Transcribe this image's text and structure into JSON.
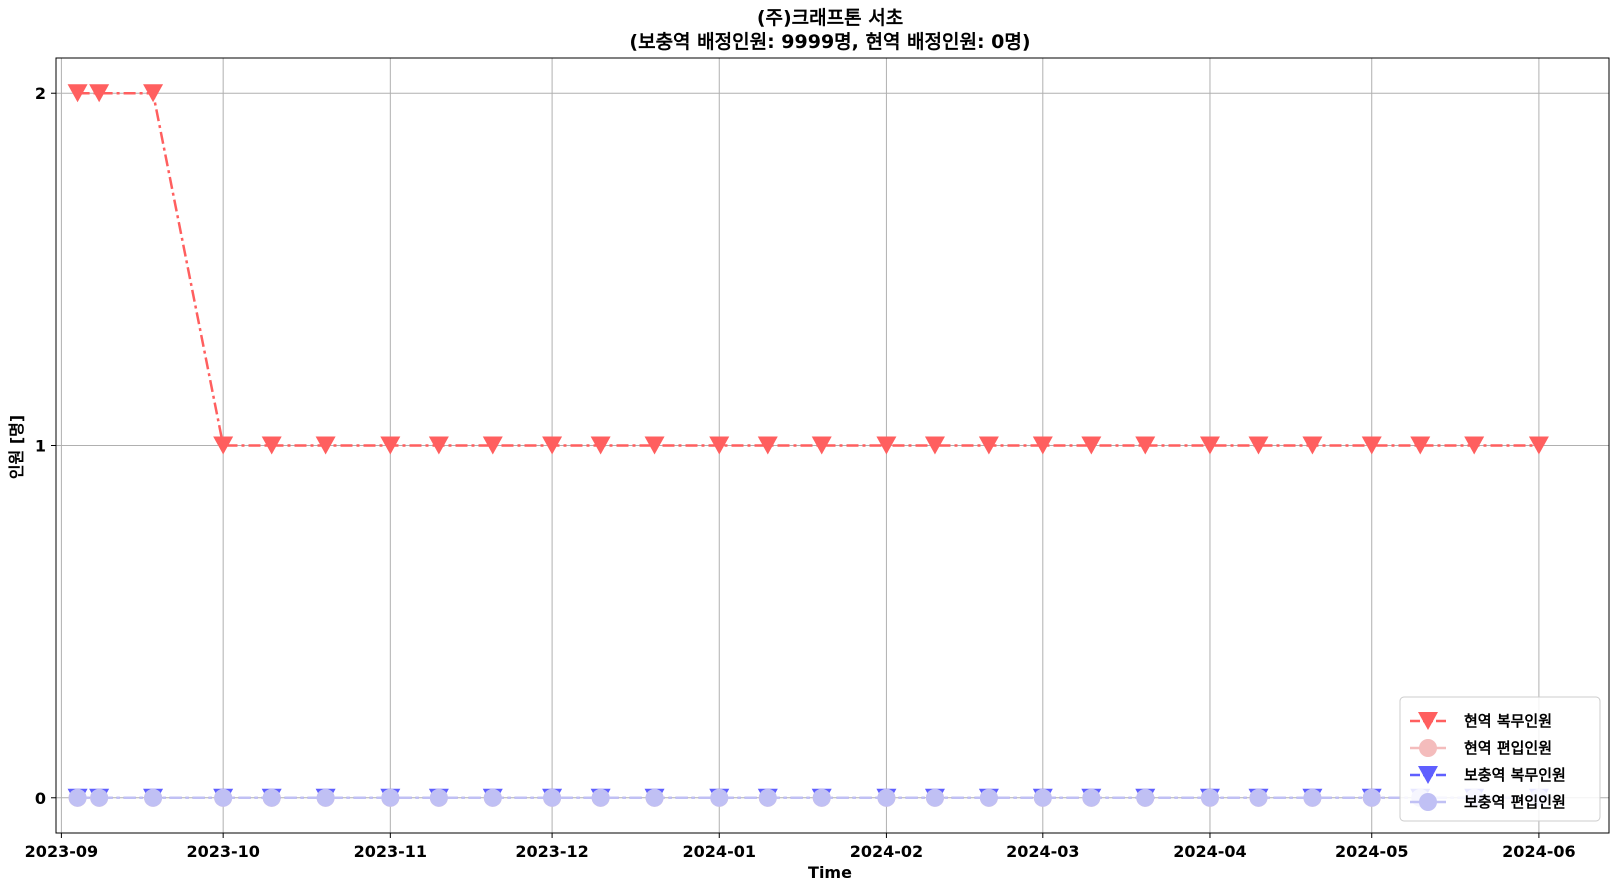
{
  "chart_data": {
    "type": "line",
    "title": "(주)크래프톤 서초",
    "subtitle": "(보충역 배정인원: 9999명, 현역 배정인원: 0명)",
    "xlabel": "Time",
    "ylabel": "인원 [명]",
    "ylim": [
      -0.1,
      2.1
    ],
    "xlim": [
      "2023-08-31",
      "2024-06-14"
    ],
    "y_ticks": [
      0,
      1,
      2
    ],
    "x_ticks": [
      "2023-09",
      "2023-10",
      "2023-11",
      "2023-12",
      "2024-01",
      "2024-02",
      "2024-03",
      "2024-04",
      "2024-05",
      "2024-06"
    ],
    "grid": true,
    "legend_position": "lower right",
    "x": [
      "2023-09-04",
      "2023-09-08",
      "2023-09-18",
      "2023-10-01",
      "2023-10-10",
      "2023-10-20",
      "2023-11-01",
      "2023-11-10",
      "2023-11-20",
      "2023-12-01",
      "2023-12-10",
      "2023-12-20",
      "2024-01-01",
      "2024-01-10",
      "2024-01-20",
      "2024-02-01",
      "2024-02-10",
      "2024-02-20",
      "2024-03-01",
      "2024-03-10",
      "2024-03-20",
      "2024-04-01",
      "2024-04-10",
      "2024-04-20",
      "2024-05-01",
      "2024-05-10",
      "2024-05-20",
      "2024-06-01"
    ],
    "series": [
      {
        "name": "현역 복무인원",
        "color": "#ff5f5f",
        "marker": "triangle-down",
        "dash": "dash-dot",
        "values": [
          2,
          2,
          2,
          1,
          1,
          1,
          1,
          1,
          1,
          1,
          1,
          1,
          1,
          1,
          1,
          1,
          1,
          1,
          1,
          1,
          1,
          1,
          1,
          1,
          1,
          1,
          1,
          1
        ]
      },
      {
        "name": "현역 편입인원",
        "color": "#f4bcbc",
        "marker": "circle",
        "dash": "dash-dot",
        "values": [
          0,
          0,
          0,
          0,
          0,
          0,
          0,
          0,
          0,
          0,
          0,
          0,
          0,
          0,
          0,
          0,
          0,
          0,
          0,
          0,
          0,
          0,
          0,
          0,
          0,
          0,
          0,
          0
        ]
      },
      {
        "name": "보충역 복무인원",
        "color": "#5f5fff",
        "marker": "triangle-down",
        "dash": "dash-dot",
        "values": [
          0,
          0,
          0,
          0,
          0,
          0,
          0,
          0,
          0,
          0,
          0,
          0,
          0,
          0,
          0,
          0,
          0,
          0,
          0,
          0,
          0,
          0,
          0,
          0,
          0,
          0,
          0,
          0
        ]
      },
      {
        "name": "보충역 편입인원",
        "color": "#c0c0f4",
        "marker": "circle",
        "dash": "dash-dot",
        "values": [
          0,
          0,
          0,
          0,
          0,
          0,
          0,
          0,
          0,
          0,
          0,
          0,
          0,
          0,
          0,
          0,
          0,
          0,
          0,
          0,
          0,
          0,
          0,
          0,
          0,
          0,
          0,
          0
        ]
      }
    ]
  }
}
